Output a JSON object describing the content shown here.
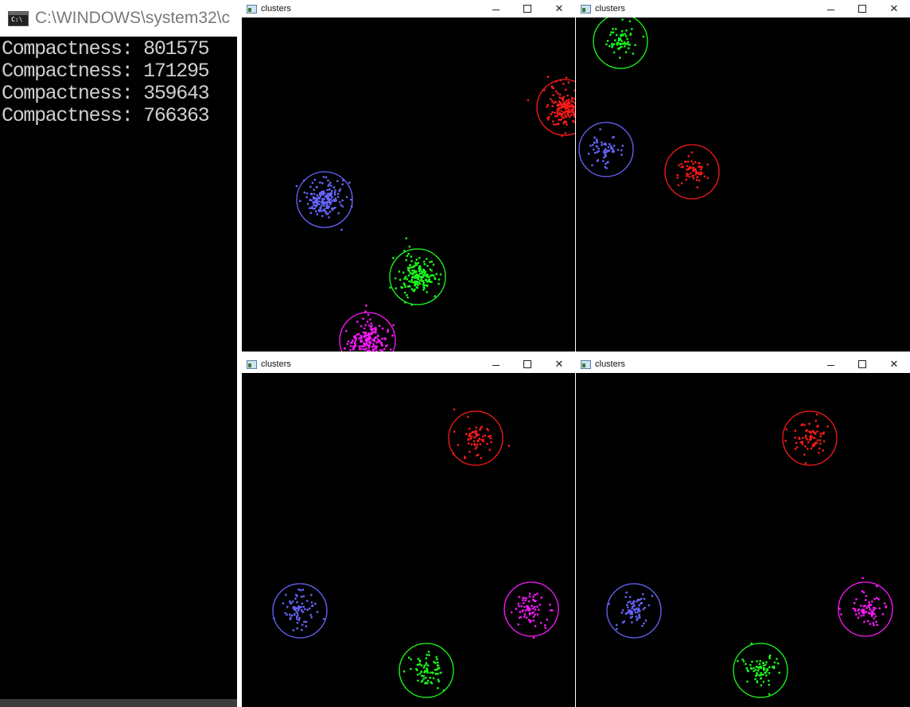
{
  "console": {
    "title": "C:\\WINDOWS\\system32\\c",
    "lines": [
      "Compactness: 801575",
      "Compactness: 171295",
      "Compactness: 359643",
      "Compactness: 766363"
    ]
  },
  "windows": [
    {
      "title": "clusters",
      "clusters": [
        {
          "color": "#ff1a1a",
          "center": [
            406,
            113
          ],
          "radius": 35,
          "count": 180,
          "spread": 22
        },
        {
          "color": "#6666ff",
          "center": [
            104,
            229
          ],
          "radius": 35,
          "count": 180,
          "spread": 22
        },
        {
          "color": "#1aff1a",
          "center": [
            221,
            326
          ],
          "radius": 35,
          "count": 180,
          "spread": 22
        },
        {
          "color": "#ff1aff",
          "center": [
            158,
            406
          ],
          "radius": 35,
          "count": 180,
          "spread": 22
        }
      ]
    },
    {
      "title": "clusters",
      "clusters": [
        {
          "color": "#1aff1a",
          "center": [
            56,
            30
          ],
          "radius": 34,
          "count": 60,
          "spread": 20
        },
        {
          "color": "#6666ff",
          "center": [
            38,
            166
          ],
          "radius": 34,
          "count": 60,
          "spread": 20
        },
        {
          "color": "#ff1a1a",
          "center": [
            146,
            194
          ],
          "radius": 34,
          "count": 60,
          "spread": 20
        }
      ]
    },
    {
      "title": "clusters",
      "clusters": [
        {
          "color": "#ff1a1a",
          "center": [
            294,
            82
          ],
          "radius": 34,
          "count": 70,
          "spread": 20
        },
        {
          "color": "#6666ff",
          "center": [
            73,
            299
          ],
          "radius": 34,
          "count": 70,
          "spread": 20
        },
        {
          "color": "#ff1aff",
          "center": [
            364,
            297
          ],
          "radius": 34,
          "count": 70,
          "spread": 20
        },
        {
          "color": "#1aff1a",
          "center": [
            232,
            374
          ],
          "radius": 34,
          "count": 70,
          "spread": 20
        }
      ]
    },
    {
      "title": "clusters",
      "clusters": [
        {
          "color": "#ff1a1a",
          "center": [
            294,
            82
          ],
          "radius": 34,
          "count": 70,
          "spread": 20
        },
        {
          "color": "#6666ff",
          "center": [
            73,
            299
          ],
          "radius": 34,
          "count": 70,
          "spread": 20
        },
        {
          "color": "#ff1aff",
          "center": [
            364,
            297
          ],
          "radius": 34,
          "count": 70,
          "spread": 20
        },
        {
          "color": "#1aff1a",
          "center": [
            232,
            374
          ],
          "radius": 34,
          "count": 70,
          "spread": 20
        }
      ]
    }
  ],
  "controls": {
    "minimize": "–",
    "maximize": "□",
    "close": "✕"
  }
}
